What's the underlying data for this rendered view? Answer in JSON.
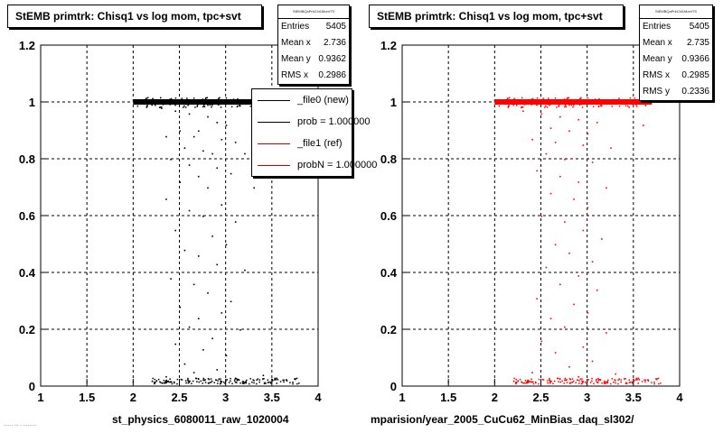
{
  "panels": [
    {
      "title": "StEMB primtrk: Chisq1 vs log mom, tpc+svt",
      "stats": {
        "header": "StEMBQaPrkChi1MomTS",
        "rows": [
          {
            "label": "Entries",
            "value": "5405"
          },
          {
            "label": "Mean x",
            "value": "2.736"
          },
          {
            "label": "Mean y",
            "value": "0.9362"
          },
          {
            "label": "RMS x",
            "value": "0.2986"
          }
        ]
      },
      "legend": [
        {
          "label": "_file0 (new)",
          "color": "#000000"
        },
        {
          "label": "prob = 1.000000",
          "color": "#000000"
        },
        {
          "label": "_file1 (ref)",
          "color": "#cc0000"
        },
        {
          "label": "probN = 1.000000",
          "color": "#cc0000"
        }
      ],
      "xlabel": "st_physics_6080011_raw_1020004",
      "marker_color": "#000000"
    },
    {
      "title": "StEMB primtrk: Chisq1 vs log mom, tpc+svt",
      "stats": {
        "header": "StEMBQaPrkChi1MomTS",
        "rows": [
          {
            "label": "Entries",
            "value": "5405"
          },
          {
            "label": "Mean x",
            "value": "2.735"
          },
          {
            "label": "Mean y",
            "value": "0.9366"
          },
          {
            "label": "RMS x",
            "value": "0.2985"
          },
          {
            "label": "RMS y",
            "value": "0.2336"
          }
        ]
      },
      "legend": [],
      "xlabel": "mparision/year_2005_CuCu62_MinBias_daq_sl302/",
      "marker_color": "#ff0000"
    }
  ],
  "footer_note": "...... ... . .........",
  "chart_data": [
    {
      "type": "scatter",
      "title": "StEMB primtrk: Chisq1 vs log mom, tpc+svt",
      "xlabel": "st_physics_6080011_raw_1020004",
      "ylabel": "",
      "xlim": [
        1,
        4
      ],
      "ylim": [
        0,
        1.2
      ],
      "xticks": [
        "1",
        "1.5",
        "2",
        "2.5",
        "3",
        "3.5",
        "4"
      ],
      "yticks": [
        "0",
        "0.2",
        "0.4",
        "0.6",
        "0.8",
        "1",
        "1.2"
      ],
      "grid": true,
      "series": [
        {
          "name": "_file0 (new)",
          "color": "#000000",
          "dense_band": {
            "y": 1.0,
            "x_range": [
              2.0,
              3.7
            ]
          },
          "bottom_band": {
            "y": 0.01,
            "x_range": [
              2.2,
              3.8
            ]
          },
          "points": [
            [
              2.3,
              0.98
            ],
            [
              2.45,
              0.97
            ],
            [
              2.6,
              0.96
            ],
            [
              2.8,
              0.95
            ],
            [
              2.9,
              0.93
            ],
            [
              3.0,
              0.92
            ],
            [
              2.7,
              0.9
            ],
            [
              2.5,
              0.9
            ],
            [
              2.35,
              0.88
            ],
            [
              2.65,
              0.88
            ],
            [
              2.95,
              0.87
            ],
            [
              3.1,
              0.86
            ],
            [
              2.55,
              0.84
            ],
            [
              2.75,
              0.83
            ],
            [
              2.85,
              0.82
            ],
            [
              3.2,
              0.82
            ],
            [
              2.4,
              0.8
            ],
            [
              2.6,
              0.78
            ],
            [
              2.9,
              0.77
            ],
            [
              3.05,
              0.75
            ],
            [
              2.7,
              0.74
            ],
            [
              2.5,
              0.72
            ],
            [
              2.8,
              0.7
            ],
            [
              3.3,
              0.7
            ],
            [
              2.35,
              0.66
            ],
            [
              2.95,
              0.64
            ],
            [
              2.6,
              0.62
            ],
            [
              2.75,
              0.6
            ],
            [
              3.1,
              0.58
            ],
            [
              2.45,
              0.55
            ],
            [
              2.85,
              0.53
            ],
            [
              3.0,
              0.5
            ],
            [
              2.55,
              0.48
            ],
            [
              2.7,
              0.46
            ],
            [
              2.9,
              0.43
            ],
            [
              3.2,
              0.41
            ],
            [
              2.4,
              0.38
            ],
            [
              2.65,
              0.36
            ],
            [
              2.8,
              0.33
            ],
            [
              3.05,
              0.3
            ],
            [
              2.5,
              0.28
            ],
            [
              2.95,
              0.26
            ],
            [
              2.7,
              0.24
            ],
            [
              2.6,
              0.21
            ],
            [
              3.15,
              0.2
            ],
            [
              2.85,
              0.17
            ],
            [
              2.45,
              0.15
            ],
            [
              2.75,
              0.13
            ],
            [
              3.0,
              0.11
            ],
            [
              2.55,
              0.08
            ],
            [
              2.9,
              0.06
            ],
            [
              2.65,
              0.05
            ],
            [
              3.4,
              0.04
            ],
            [
              2.35,
              0.035
            ],
            [
              3.1,
              0.03
            ]
          ]
        }
      ]
    },
    {
      "type": "scatter",
      "title": "StEMB primtrk: Chisq1 vs log mom, tpc+svt",
      "xlabel": "mparision/year_2005_CuCu62_MinBias_daq_sl302/",
      "ylabel": "",
      "xlim": [
        1,
        4
      ],
      "ylim": [
        0,
        1.2
      ],
      "xticks": [
        "1",
        "1.5",
        "2",
        "2.5",
        "3",
        "3.5",
        "4"
      ],
      "yticks": [
        "0",
        "0.2",
        "0.4",
        "0.6",
        "0.8",
        "1",
        "1.2"
      ],
      "grid": true,
      "series": [
        {
          "name": "_file1 (ref)",
          "color": "#ff0000",
          "dense_band": {
            "y": 1.0,
            "x_range": [
              2.0,
              3.7
            ]
          },
          "bottom_band": {
            "y": 0.01,
            "x_range": [
              2.2,
              3.8
            ]
          },
          "points": [
            [
              2.3,
              0.97
            ],
            [
              2.5,
              0.96
            ],
            [
              2.7,
              0.95
            ],
            [
              2.9,
              0.94
            ],
            [
              3.1,
              0.93
            ],
            [
              2.6,
              0.91
            ],
            [
              2.8,
              0.9
            ],
            [
              3.0,
              0.89
            ],
            [
              2.4,
              0.87
            ],
            [
              2.65,
              0.86
            ],
            [
              2.95,
              0.85
            ],
            [
              3.25,
              0.84
            ],
            [
              2.55,
              0.82
            ],
            [
              2.75,
              0.8
            ],
            [
              3.05,
              0.79
            ],
            [
              3.6,
              0.92
            ],
            [
              2.45,
              0.76
            ],
            [
              2.7,
              0.74
            ],
            [
              2.9,
              0.72
            ],
            [
              3.2,
              0.7
            ],
            [
              2.6,
              0.68
            ],
            [
              2.85,
              0.66
            ],
            [
              3.0,
              0.63
            ],
            [
              2.5,
              0.6
            ],
            [
              2.75,
              0.58
            ],
            [
              2.95,
              0.55
            ],
            [
              3.15,
              0.52
            ],
            [
              2.65,
              0.5
            ],
            [
              2.8,
              0.47
            ],
            [
              3.05,
              0.44
            ],
            [
              2.55,
              0.42
            ],
            [
              2.9,
              0.39
            ],
            [
              2.7,
              0.36
            ],
            [
              3.1,
              0.34
            ],
            [
              2.45,
              0.31
            ],
            [
              2.85,
              0.29
            ],
            [
              3.0,
              0.26
            ],
            [
              2.6,
              0.24
            ],
            [
              2.75,
              0.21
            ],
            [
              3.2,
              0.19
            ],
            [
              2.5,
              0.16
            ],
            [
              2.95,
              0.14
            ],
            [
              2.65,
              0.12
            ],
            [
              3.05,
              0.09
            ],
            [
              2.8,
              0.07
            ],
            [
              2.4,
              0.05
            ],
            [
              3.3,
              0.045
            ],
            [
              2.9,
              0.035
            ]
          ]
        }
      ]
    }
  ]
}
